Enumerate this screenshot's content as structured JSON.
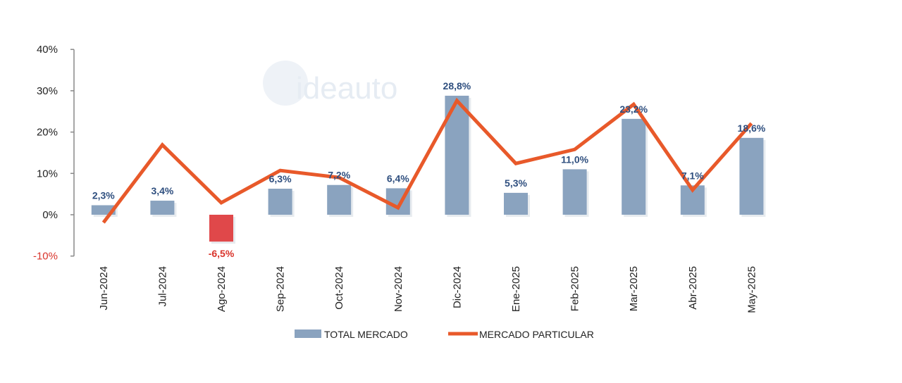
{
  "chart_data": {
    "type": "bar+line",
    "title": "",
    "xlabel": "",
    "ylabel": "",
    "ylim": [
      -10,
      40
    ],
    "yticks": [
      40,
      30,
      20,
      10,
      0,
      -10
    ],
    "ytick_labels": [
      "40%",
      "30%",
      "20%",
      "10%",
      "0%",
      "-10%"
    ],
    "grid": false,
    "legend_position": "bottom",
    "categories": [
      "Jun-2024",
      "Jul-2024",
      "Ago-2024",
      "Sep-2024",
      "Oct-2024",
      "Nov-2024",
      "Dic-2024",
      "Ene-2025",
      "Feb-2025",
      "Mar-2025",
      "Abr-2025",
      "May-2025"
    ],
    "series": [
      {
        "name": "TOTAL MERCADO",
        "kind": "bar",
        "color": "#8aa3bf",
        "negative_color": "#e0484a",
        "values": [
          2.3,
          3.4,
          -6.5,
          6.3,
          7.2,
          6.4,
          28.8,
          5.3,
          11.0,
          23.2,
          7.1,
          18.6
        ],
        "labels": [
          "2,3%",
          "3,4%",
          "-6,5%",
          "6,3%",
          "7,2%",
          "6,4%",
          "28,8%",
          "5,3%",
          "11,0%",
          "23,2%",
          "7,1%",
          "18,6%"
        ]
      },
      {
        "name": "MERCADO PARTICULAR",
        "kind": "line",
        "color": "#e8592a",
        "values": [
          -1.9,
          16.9,
          2.9,
          10.7,
          9.0,
          1.7,
          27.6,
          12.4,
          15.8,
          26.7,
          6.0,
          22.1
        ]
      }
    ],
    "watermark": "ideauto"
  }
}
